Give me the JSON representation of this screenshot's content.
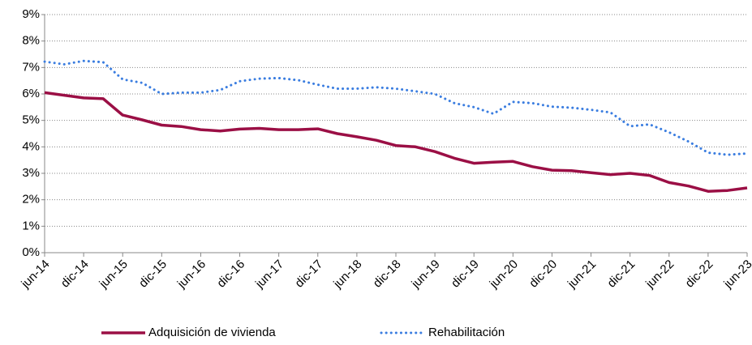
{
  "chart_data": {
    "type": "line",
    "categories": [
      "jun-14",
      null,
      "dic-14",
      null,
      "jun-15",
      null,
      "dic-15",
      null,
      "jun-16",
      null,
      "dic-16",
      null,
      "jun-17",
      null,
      "dic-17",
      null,
      "jun-18",
      null,
      "dic-18",
      null,
      "jun-19",
      null,
      "dic-19",
      null,
      "jun-20",
      null,
      "dic-20",
      null,
      "jun-21",
      null,
      "dic-21",
      null,
      "jun-22",
      null,
      "dic-22",
      null,
      "jun-23"
    ],
    "series": [
      {
        "name": "Adquisición de vivienda",
        "color": "#9b0f45",
        "style": "solid",
        "values": [
          6.05,
          5.95,
          5.85,
          5.82,
          5.2,
          5.02,
          4.82,
          4.77,
          4.65,
          4.6,
          4.67,
          4.7,
          4.65,
          4.65,
          4.68,
          4.5,
          4.38,
          4.25,
          4.05,
          4.0,
          3.82,
          3.57,
          3.38,
          3.42,
          3.45,
          3.25,
          3.12,
          3.1,
          3.02,
          2.95,
          3.0,
          2.92,
          2.65,
          2.52,
          2.32,
          2.35,
          2.45
        ]
      },
      {
        "name": "Rehabilitación",
        "color": "#3a7de0",
        "style": "dotted",
        "values": [
          7.22,
          7.12,
          7.25,
          7.2,
          6.55,
          6.42,
          6.0,
          6.05,
          6.05,
          6.15,
          6.48,
          6.58,
          6.6,
          6.52,
          6.35,
          6.2,
          6.2,
          6.25,
          6.2,
          6.1,
          6.0,
          5.65,
          5.5,
          5.25,
          5.7,
          5.65,
          5.52,
          5.48,
          5.4,
          5.3,
          4.78,
          4.85,
          4.55,
          4.2,
          3.78,
          3.7,
          3.75
        ]
      }
    ],
    "ylim": [
      0,
      9
    ],
    "yticks": [
      {
        "value": 0,
        "label": "0%"
      },
      {
        "value": 1,
        "label": "1%"
      },
      {
        "value": 2,
        "label": "2%"
      },
      {
        "value": 3,
        "label": "3%"
      },
      {
        "value": 4,
        "label": "4%"
      },
      {
        "value": 5,
        "label": "5%"
      },
      {
        "value": 6,
        "label": "6%"
      },
      {
        "value": 7,
        "label": "7%"
      },
      {
        "value": 8,
        "label": "8%"
      },
      {
        "value": 9,
        "label": "9%"
      }
    ],
    "grid": true,
    "legend": "bottom"
  }
}
